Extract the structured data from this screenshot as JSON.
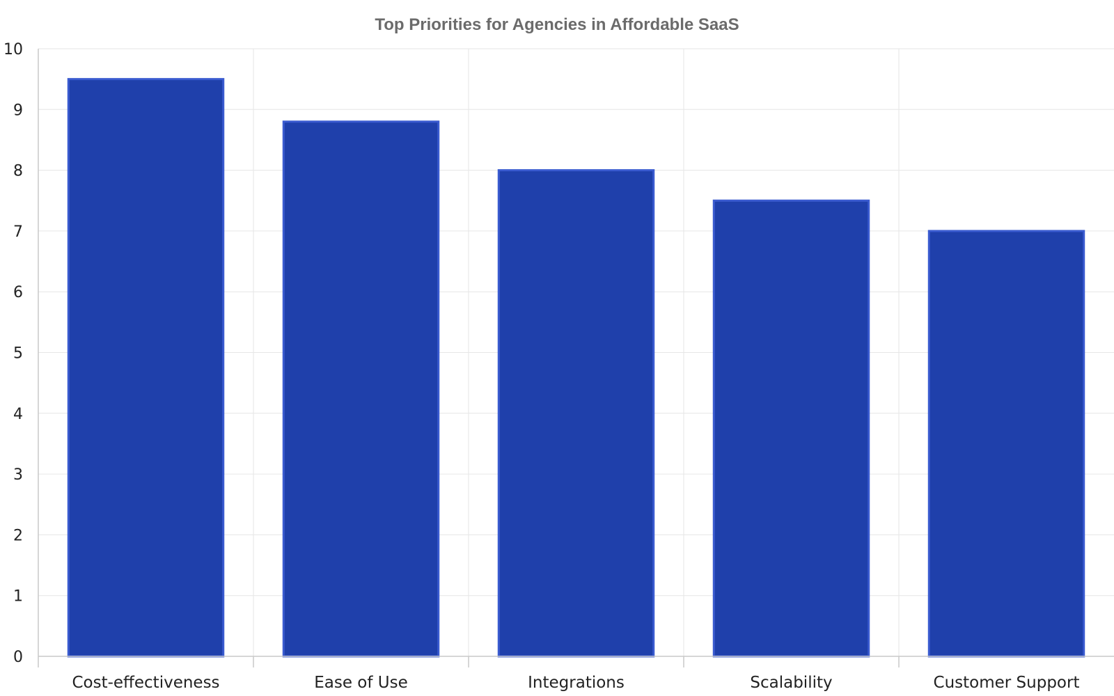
{
  "chart_data": {
    "type": "bar",
    "title": "Top Priorities for Agencies in Affordable SaaS",
    "xlabel": "",
    "ylabel": "",
    "categories": [
      "Cost-effectiveness",
      "Ease of Use",
      "Integrations",
      "Scalability",
      "Customer Support"
    ],
    "values": [
      9.5,
      8.8,
      8.0,
      7.5,
      7.0
    ],
    "ylim": [
      0,
      10
    ],
    "yticks": [
      "0",
      "1",
      "2",
      "3",
      "4",
      "5",
      "6",
      "7",
      "8",
      "9",
      "10"
    ],
    "grid": true,
    "legend": "none",
    "colors": {
      "bar": "#1f40ab",
      "bar_edge": "#3a5bd0",
      "grid": "#e6e6e6"
    }
  }
}
